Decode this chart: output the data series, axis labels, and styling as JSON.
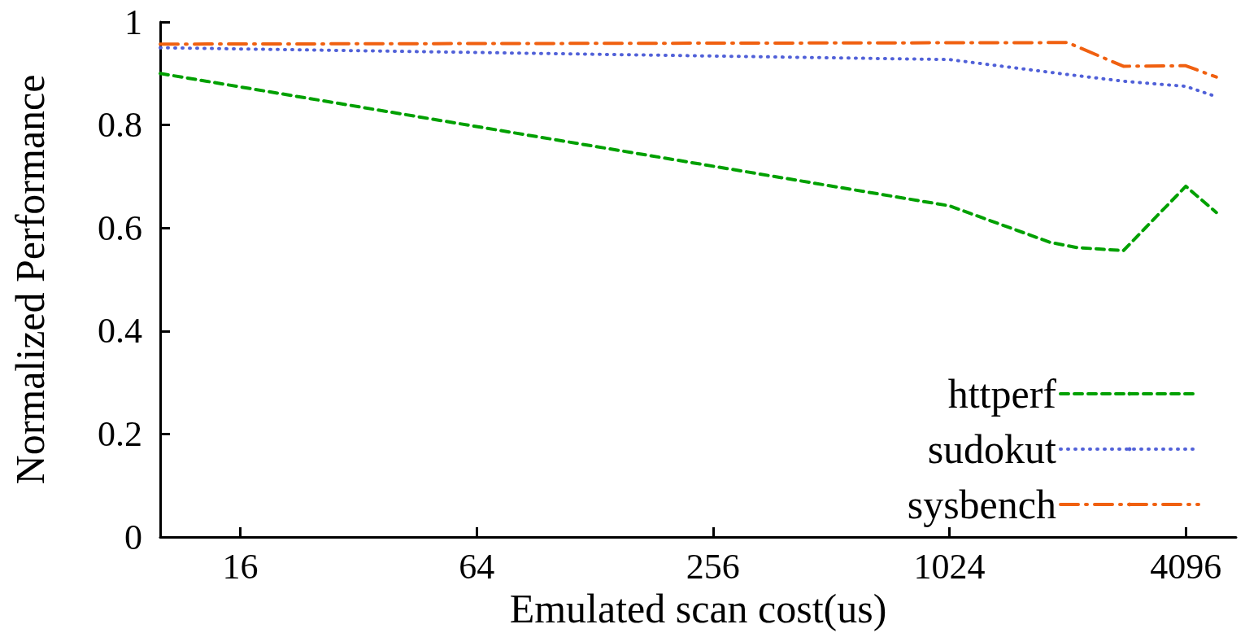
{
  "chart_data": {
    "type": "line",
    "xlabel": "Emulated scan cost(us)",
    "ylabel": "Normalized Performance",
    "series": [
      {
        "name": "httperf",
        "color": "#00a000",
        "line_style": "dashed",
        "x": [
          10,
          1024,
          1850,
          2160,
          2840,
          4096,
          4900
        ],
        "values": [
          0.9,
          0.643,
          0.572,
          0.562,
          0.556,
          0.681,
          0.63
        ]
      },
      {
        "name": "sudokut",
        "color": "#5060d8",
        "line_style": "dotted",
        "x": [
          10,
          1024,
          2048,
          2840,
          4096,
          4900
        ],
        "values": [
          0.95,
          0.927,
          0.898,
          0.885,
          0.875,
          0.855
        ]
      },
      {
        "name": "sysbench",
        "color": "#f06010",
        "line_style": "dashdot",
        "x": [
          10,
          2048,
          2840,
          4096,
          4900
        ],
        "values": [
          0.957,
          0.96,
          0.914,
          0.915,
          0.893
        ]
      }
    ],
    "log": "x",
    "xlim": [
      10,
      5500
    ],
    "xticks": [
      16,
      64,
      256,
      1024,
      4096
    ],
    "ylim": [
      0,
      1
    ],
    "yticks": [
      0,
      0.2,
      0.4,
      0.6,
      0.8,
      1
    ],
    "grid": false,
    "legend": "bottom right",
    "marker": "none"
  }
}
